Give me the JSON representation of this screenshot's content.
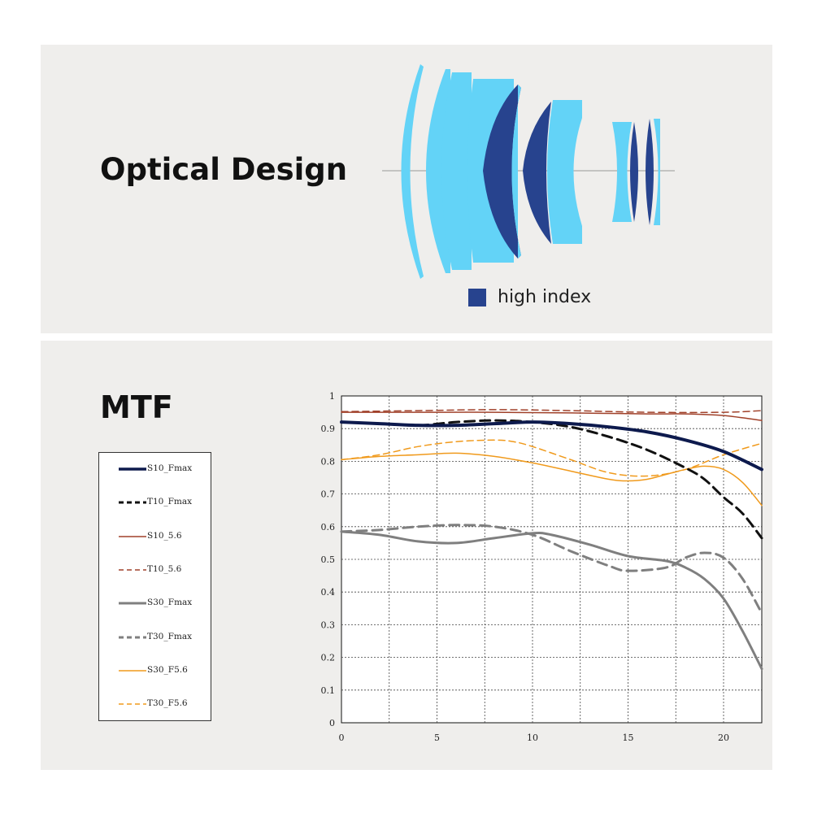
{
  "optical": {
    "title": "Optical Design",
    "legend_label": "high index",
    "colors": {
      "standard": "#63d3f7",
      "high_index": "#27438e"
    }
  },
  "mtf": {
    "title": "MTF"
  },
  "chart_data": {
    "type": "line",
    "title": "MTF",
    "xlabel": "",
    "ylabel": "",
    "xlim": [
      0,
      22
    ],
    "ylim": [
      0,
      1
    ],
    "x_ticks": [
      0,
      5,
      10,
      15,
      20
    ],
    "y_ticks": [
      0,
      0.1,
      0.2,
      0.3,
      0.4,
      0.5,
      0.6,
      0.7,
      0.8,
      0.9,
      1
    ],
    "grid": true,
    "legend_position": "left",
    "series": [
      {
        "name": "S10_Fmax",
        "color": "#0d1a4d",
        "dash": "solid",
        "width": 4,
        "x": [
          0,
          2,
          4,
          6,
          8,
          10,
          12,
          14,
          16,
          18,
          20,
          22
        ],
        "y": [
          0.92,
          0.915,
          0.91,
          0.91,
          0.915,
          0.92,
          0.915,
          0.905,
          0.89,
          0.865,
          0.83,
          0.775
        ]
      },
      {
        "name": "T10_Fmax",
        "color": "#111111",
        "dash": "dashed",
        "width": 3,
        "x": [
          0,
          2,
          4,
          6,
          8,
          10,
          12,
          14,
          16,
          18,
          19,
          20,
          21,
          22
        ],
        "y": [
          0.92,
          0.915,
          0.91,
          0.92,
          0.925,
          0.92,
          0.905,
          0.875,
          0.835,
          0.78,
          0.745,
          0.69,
          0.64,
          0.565
        ]
      },
      {
        "name": "S10_5.6",
        "color": "#a0412a",
        "dash": "solid",
        "width": 1.5,
        "x": [
          0,
          4,
          8,
          12,
          16,
          18,
          20,
          22
        ],
        "y": [
          0.95,
          0.95,
          0.95,
          0.948,
          0.945,
          0.945,
          0.94,
          0.925
        ]
      },
      {
        "name": "T10_5.6",
        "color": "#a0412a",
        "dash": "dashed",
        "width": 1.5,
        "x": [
          0,
          4,
          8,
          12,
          16,
          20,
          22
        ],
        "y": [
          0.952,
          0.955,
          0.958,
          0.955,
          0.95,
          0.95,
          0.955
        ]
      },
      {
        "name": "S30_Fmax",
        "color": "#7f7f7f",
        "dash": "solid",
        "width": 3,
        "x": [
          0,
          2,
          4,
          6,
          8,
          10,
          11,
          13,
          15,
          17,
          18,
          19,
          20,
          21,
          22
        ],
        "y": [
          0.585,
          0.575,
          0.555,
          0.55,
          0.565,
          0.58,
          0.575,
          0.545,
          0.51,
          0.495,
          0.475,
          0.44,
          0.38,
          0.28,
          0.165
        ]
      },
      {
        "name": "T30_Fmax",
        "color": "#7f7f7f",
        "dash": "dashed",
        "width": 3,
        "x": [
          0,
          2,
          4,
          6,
          8,
          10,
          12,
          14,
          15,
          17,
          18,
          19,
          20,
          21,
          22
        ],
        "y": [
          0.585,
          0.59,
          0.6,
          0.605,
          0.6,
          0.575,
          0.525,
          0.48,
          0.465,
          0.475,
          0.505,
          0.52,
          0.505,
          0.44,
          0.335
        ]
      },
      {
        "name": "S30_F5.6",
        "color": "#f09a1c",
        "dash": "solid",
        "width": 1.5,
        "x": [
          0,
          2,
          4,
          6,
          8,
          10,
          12,
          14,
          15,
          16,
          17,
          18,
          19,
          20,
          21,
          22
        ],
        "y": [
          0.805,
          0.815,
          0.82,
          0.825,
          0.815,
          0.795,
          0.77,
          0.745,
          0.74,
          0.745,
          0.76,
          0.775,
          0.785,
          0.775,
          0.735,
          0.665
        ]
      },
      {
        "name": "T30_F5.6",
        "color": "#f09a1c",
        "dash": "dashed",
        "width": 1.5,
        "x": [
          0,
          2,
          4,
          6,
          8,
          9,
          10,
          12,
          14,
          16,
          18,
          20,
          22
        ],
        "y": [
          0.805,
          0.82,
          0.845,
          0.86,
          0.865,
          0.86,
          0.845,
          0.805,
          0.765,
          0.755,
          0.775,
          0.82,
          0.855
        ]
      }
    ]
  }
}
